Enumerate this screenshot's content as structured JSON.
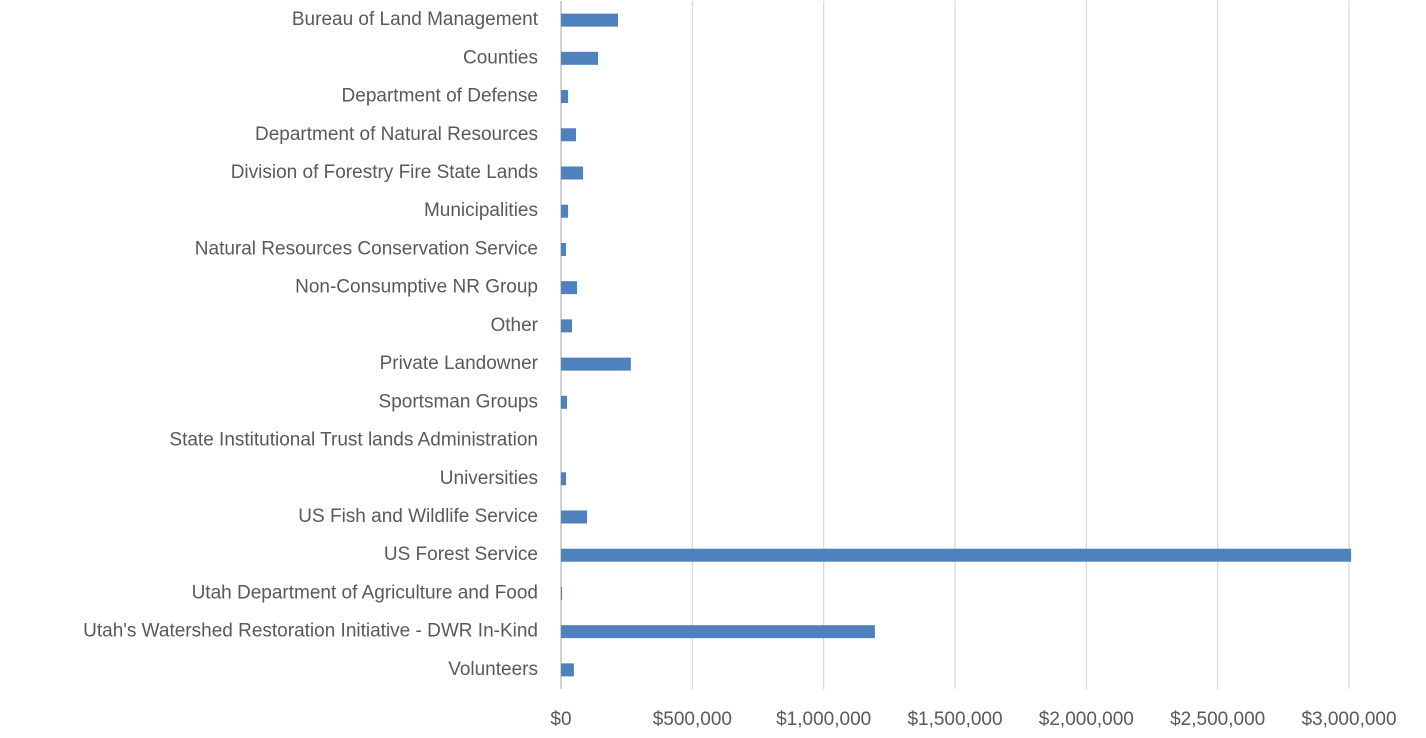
{
  "chart_data": {
    "type": "bar",
    "orientation": "horizontal",
    "categories": [
      "Bureau of Land Management",
      "Counties",
      "Department of Defense",
      "Department of Natural Resources",
      "Division of Forestry Fire State Lands",
      "Municipalities",
      "Natural Resources Conservation Service",
      "Non-Consumptive NR Group",
      "Other",
      "Private Landowner",
      "Sportsman Groups",
      "State Institutional Trust lands Administration",
      "Universities",
      "US Fish and Wildlife Service",
      "US Forest Service",
      "Utah Department of Agriculture and Food",
      "Utah's Watershed Restoration Initiative - DWR In-Kind",
      "Volunteers"
    ],
    "values": [
      217000,
      141000,
      27000,
      57000,
      84000,
      27000,
      19000,
      61000,
      42000,
      266000,
      23000,
      0,
      19000,
      99000,
      3008000,
      4000,
      1195000,
      49000
    ],
    "color": "#4f81bd",
    "xlim": [
      0,
      3000000
    ],
    "xticks": [
      {
        "value": 0,
        "label": "$0"
      },
      {
        "value": 500000,
        "label": "$500,000"
      },
      {
        "value": 1000000,
        "label": "$1,000,000"
      },
      {
        "value": 1500000,
        "label": "$1,500,000"
      },
      {
        "value": 2000000,
        "label": "$2,000,000"
      },
      {
        "value": 2500000,
        "label": "$2,500,000"
      },
      {
        "value": 3000000,
        "label": "$3,000,000"
      }
    ],
    "grid": true
  }
}
